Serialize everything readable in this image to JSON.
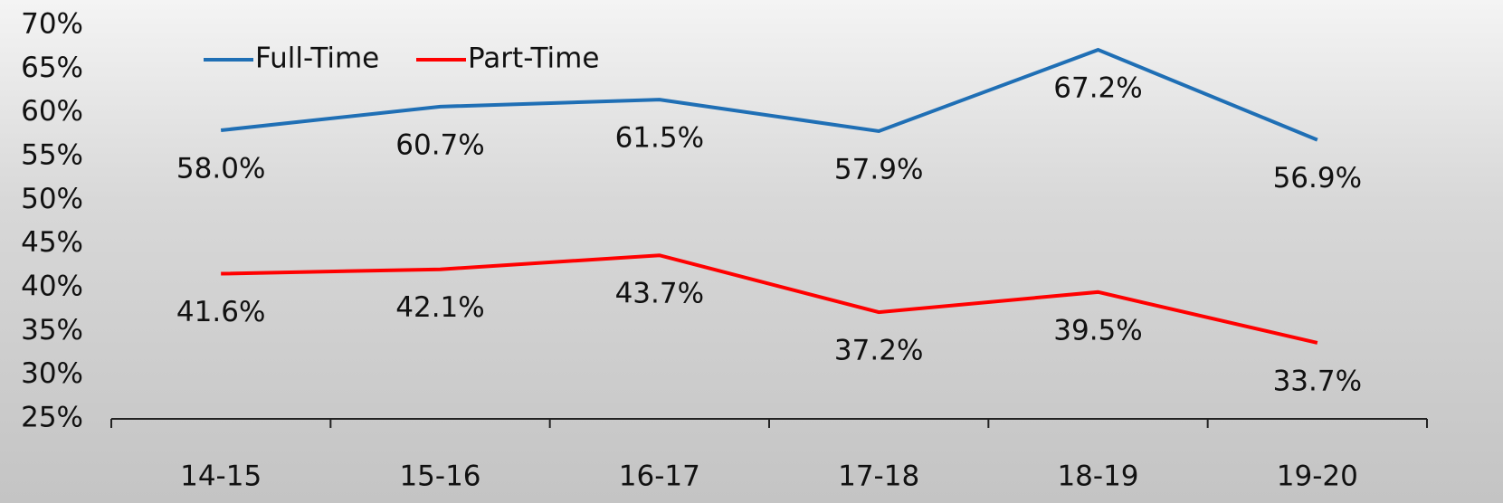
{
  "chart_data": {
    "type": "line",
    "categories": [
      "14-15",
      "15-16",
      "16-17",
      "17-18",
      "18-19",
      "19-20"
    ],
    "series": [
      {
        "name": "Full-Time",
        "color": "#1f6fb5",
        "values": [
          58.0,
          60.7,
          61.5,
          57.9,
          67.2,
          56.9
        ],
        "value_labels": [
          "58.0%",
          "60.7%",
          "61.5%",
          "57.9%",
          "67.2%",
          "56.9%"
        ]
      },
      {
        "name": "Part-Time",
        "color": "#ff0000",
        "values": [
          41.6,
          42.1,
          43.7,
          37.2,
          39.5,
          33.7
        ],
        "value_labels": [
          "41.6%",
          "42.1%",
          "43.7%",
          "37.2%",
          "39.5%",
          "33.7%"
        ]
      }
    ],
    "ylim": [
      25,
      70
    ],
    "yticks": [
      {
        "value": 25,
        "label": "25%"
      },
      {
        "value": 30,
        "label": "30%"
      },
      {
        "value": 35,
        "label": "35%"
      },
      {
        "value": 40,
        "label": "40%"
      },
      {
        "value": 45,
        "label": "45%"
      },
      {
        "value": 50,
        "label": "50%"
      },
      {
        "value": 55,
        "label": "55%"
      },
      {
        "value": 60,
        "label": "60%"
      },
      {
        "value": 65,
        "label": "65%"
      },
      {
        "value": 70,
        "label": "70%"
      }
    ],
    "legend": "top-left",
    "grid": false
  }
}
